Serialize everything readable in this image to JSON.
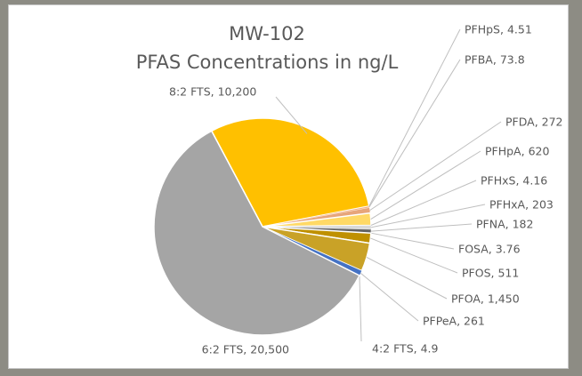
{
  "chart_data": {
    "type": "pie",
    "title": "MW-102",
    "subtitle": "PFAS Concentrations in ng/L",
    "categories": [
      "8:2 FTS",
      "PFHpS",
      "PFBA",
      "PFDA",
      "PFHpA",
      "PFHxS",
      "PFHxA",
      "PFNA",
      "FOSA",
      "PFOS",
      "PFOA",
      "PFPeA",
      "4:2 FTS",
      "6:2 FTS"
    ],
    "values": [
      10200,
      4.51,
      73.8,
      272,
      620,
      4.16,
      203,
      182,
      3.76,
      511,
      1450,
      261,
      4.9,
      20500
    ],
    "value_labels": [
      "10,200",
      "4.51",
      "73.8",
      "272",
      "620",
      "4.16",
      "203",
      "182",
      "3.76",
      "511",
      "1,450",
      "261",
      "4.9",
      "20,500"
    ],
    "colors": [
      "#ffc000",
      "#ed7d31",
      "#f4b183",
      "#e7a57a",
      "#ffd966",
      "#5b9bd5",
      "#d9d9d9",
      "#636363",
      "#9dc3e6",
      "#bf9000",
      "#c9a227",
      "#4472c4",
      "#2e75b6",
      "#a5a5a5"
    ]
  }
}
